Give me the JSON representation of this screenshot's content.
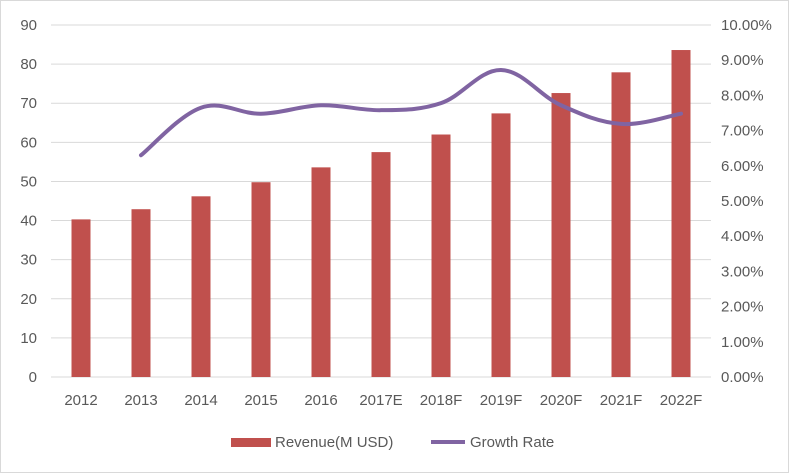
{
  "chart_data": {
    "type": "bar+line",
    "categories": [
      "2012",
      "2013",
      "2014",
      "2015",
      "2016",
      "2017E",
      "2018F",
      "2019F",
      "2020F",
      "2021F",
      "2022F"
    ],
    "series": [
      {
        "name": "Revenue(M USD)",
        "kind": "bar",
        "axis": "left",
        "color": "#c0504d",
        "values": [
          40.3,
          42.9,
          46.2,
          49.8,
          53.6,
          57.5,
          62.0,
          67.4,
          72.6,
          77.9,
          83.6
        ]
      },
      {
        "name": "Growth Rate",
        "kind": "line",
        "axis": "right",
        "color": "#8064a2",
        "values": [
          null,
          0.063,
          0.0765,
          0.0748,
          0.0772,
          0.0758,
          0.0778,
          0.0872,
          0.0772,
          0.0719,
          0.0748
        ]
      }
    ],
    "y_left": {
      "min": 0,
      "max": 90,
      "ticks": [
        "0",
        "10",
        "20",
        "30",
        "40",
        "50",
        "60",
        "70",
        "80",
        "90"
      ]
    },
    "y_right": {
      "min": 0,
      "max": 0.1,
      "ticks": [
        "0.00%",
        "1.00%",
        "2.00%",
        "3.00%",
        "4.00%",
        "5.00%",
        "6.00%",
        "7.00%",
        "8.00%",
        "9.00%",
        "10.00%"
      ]
    },
    "grid": true,
    "legend_position": "bottom-center",
    "gridline_color": "#d9d9d9"
  }
}
